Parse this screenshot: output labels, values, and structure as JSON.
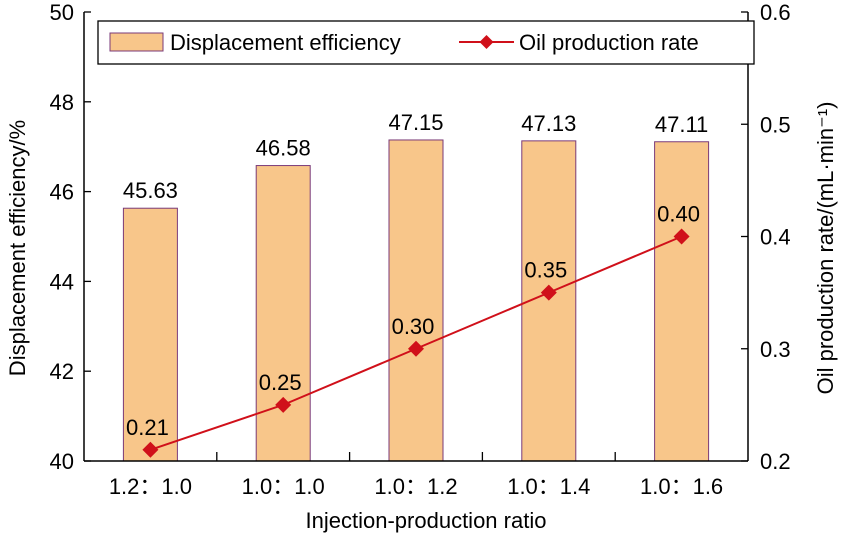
{
  "chart_data": {
    "type": "bar",
    "title": "",
    "xlabel": "Injection-production ratio",
    "categories": [
      "1.2：1.0",
      "1.0：1.0",
      "1.0：1.2",
      "1.0：1.4",
      "1.0：1.6"
    ],
    "series": [
      {
        "name": "Displacement efficiency",
        "type": "bar",
        "axis": "left",
        "values": [
          45.63,
          46.58,
          47.15,
          47.13,
          47.11
        ],
        "labels": [
          "45.63",
          "46.58",
          "47.15",
          "47.13",
          "47.11"
        ],
        "color": "#f8c68a",
        "edge_color": "#7a3a78"
      },
      {
        "name": "Oil production rate",
        "type": "line",
        "axis": "right",
        "marker": "diamond",
        "values": [
          0.21,
          0.25,
          0.3,
          0.35,
          0.4
        ],
        "labels": [
          "0.21",
          "0.25",
          "0.30",
          "0.35",
          "0.40"
        ],
        "color": "#d0101a"
      }
    ],
    "y_left": {
      "label": "Displacement efficiency/%",
      "ylim": [
        40,
        50
      ],
      "ticks": [
        40,
        42,
        44,
        46,
        48,
        50
      ],
      "tick_labels": [
        "40",
        "42",
        "44",
        "46",
        "48",
        "50"
      ]
    },
    "y_right": {
      "label": "Oil production rate/(mL·min⁻¹)",
      "ylim": [
        0.2,
        0.6
      ],
      "ticks": [
        0.2,
        0.3,
        0.4,
        0.5,
        0.6
      ],
      "tick_labels": [
        "0.2",
        "0.3",
        "0.4",
        "0.5",
        "0.6"
      ]
    },
    "grid": false,
    "legend": {
      "position": "top-center",
      "orientation": "horizontal",
      "entries": [
        "Displacement efficiency",
        "Oil production rate"
      ]
    }
  }
}
